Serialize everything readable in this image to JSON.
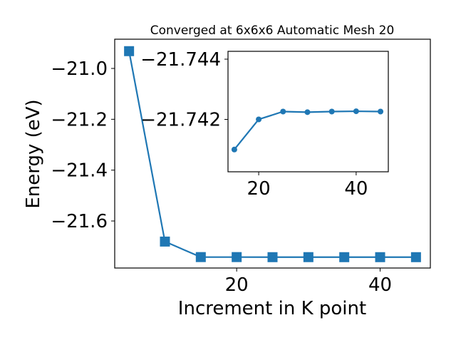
{
  "chart_data": [
    {
      "type": "line",
      "title": "Converged at 6x6x6 Automatic Mesh 20",
      "xlabel": "Increment in K point",
      "ylabel": "Energy (eV)",
      "x": [
        5,
        10,
        15,
        20,
        25,
        30,
        35,
        40,
        45
      ],
      "series": [
        {
          "values": [
            -20.932,
            -21.681,
            -21.742,
            -21.742,
            -21.7423,
            -21.7422,
            -21.7423,
            -21.7423,
            -21.7423
          ],
          "marker": "square",
          "color": "#1f77b4"
        }
      ],
      "xlim": [
        3,
        47
      ],
      "ylim": [
        -21.785,
        -20.885
      ],
      "xticks": [
        {
          "value": 20,
          "label": "20"
        },
        {
          "value": 40,
          "label": "40"
        }
      ],
      "yticks": [
        {
          "value": -21.0,
          "label": "−21.0"
        },
        {
          "value": -21.2,
          "label": "−21.2"
        },
        {
          "value": -21.4,
          "label": "−21.4"
        },
        {
          "value": -21.6,
          "label": "−21.6"
        }
      ],
      "grid": false
    },
    {
      "type": "line",
      "title": "",
      "x": [
        15,
        20,
        25,
        30,
        35,
        40,
        45
      ],
      "series": [
        {
          "values": [
            -21.741,
            -21.742,
            -21.74226,
            -21.74224,
            -21.74226,
            -21.74227,
            -21.74226
          ],
          "marker": "circle",
          "color": "#1f77b4"
        }
      ],
      "xlim": [
        13.7,
        46.6
      ],
      "ylim": [
        -21.74026,
        -21.74426
      ],
      "y_inverted": true,
      "xticks": [
        {
          "value": 20,
          "label": "20"
        },
        {
          "value": 40,
          "label": "40"
        }
      ],
      "yticks": [
        {
          "value": -21.744,
          "label": "−21.744"
        },
        {
          "value": -21.742,
          "label": "−21.742"
        }
      ],
      "grid": false
    }
  ]
}
